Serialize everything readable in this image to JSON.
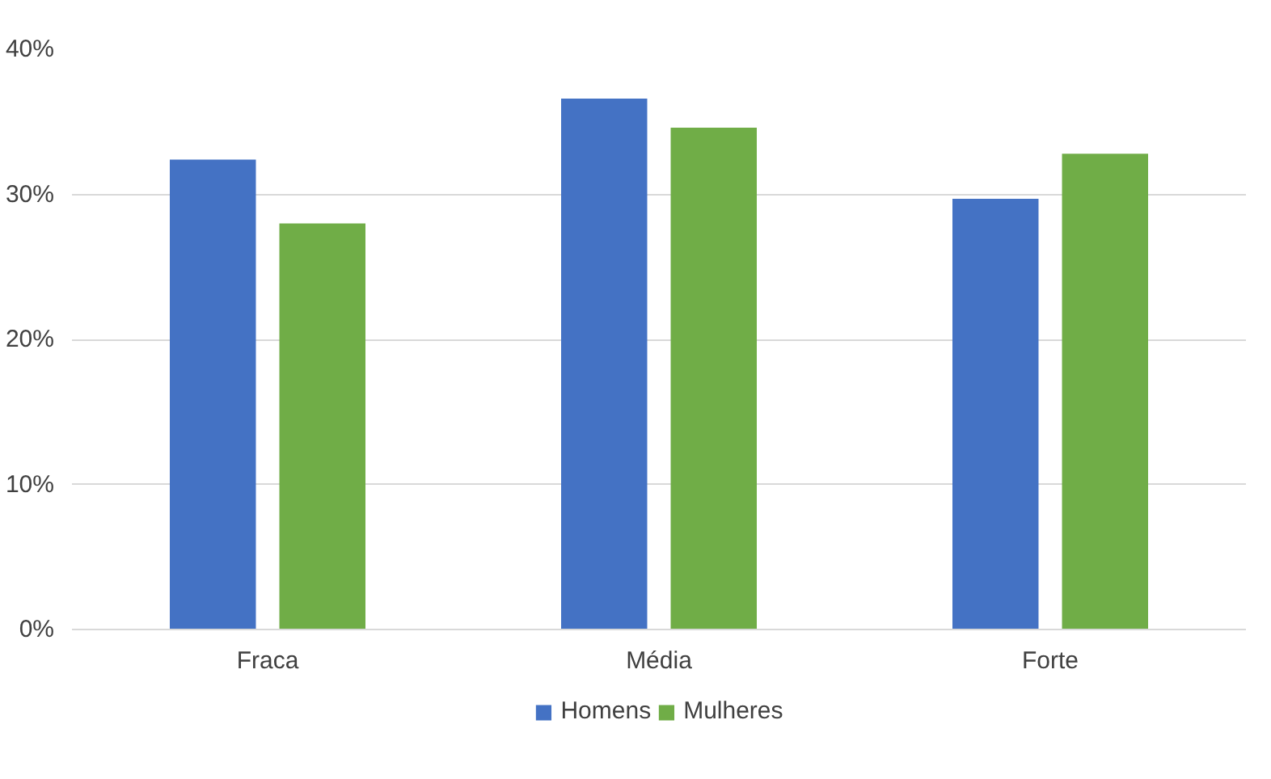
{
  "chart_data": {
    "type": "bar",
    "categories": [
      "Fraca",
      "Média",
      "Forte"
    ],
    "series": [
      {
        "name": "Homens",
        "color": "#4472c4",
        "values": [
          32.4,
          36.6,
          29.7
        ]
      },
      {
        "name": "Mulheres",
        "color": "#70ad47",
        "values": [
          28.0,
          34.6,
          32.8
        ]
      }
    ],
    "ylim": [
      0,
      40
    ],
    "yticks": [
      {
        "value": 0,
        "label": "0%"
      },
      {
        "value": 10,
        "label": "10%"
      },
      {
        "value": 20,
        "label": "20%"
      },
      {
        "value": 30,
        "label": "30%"
      },
      {
        "value": 40,
        "label": "40%"
      }
    ],
    "grid": "y",
    "legend": "bottom"
  }
}
